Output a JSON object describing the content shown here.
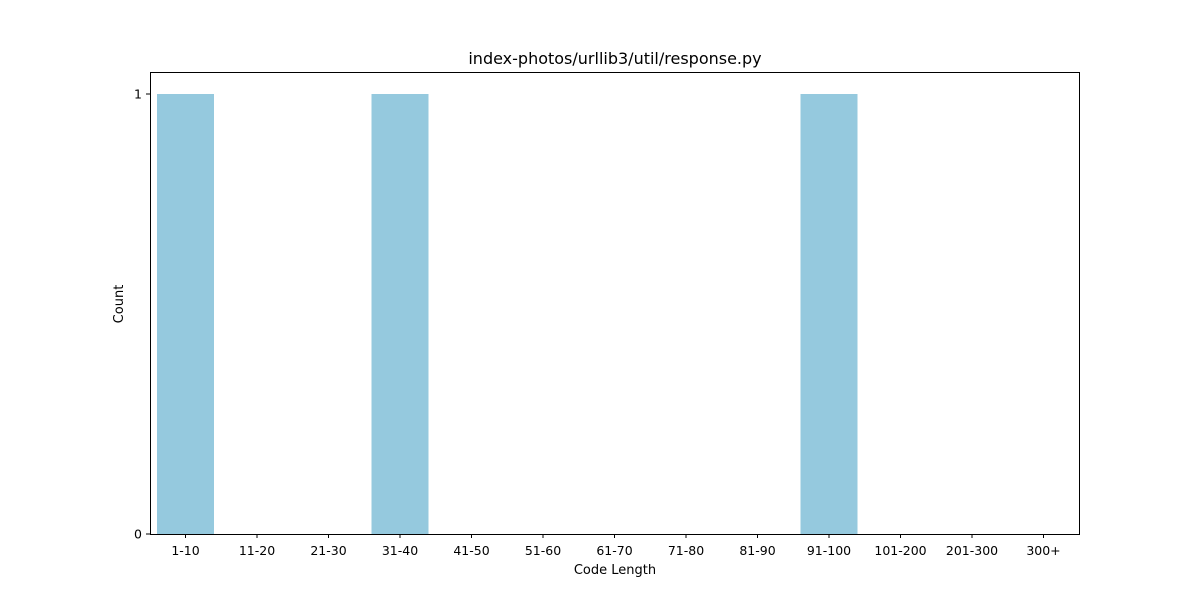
{
  "chart_data": {
    "type": "bar",
    "title": "index-photos/urllib3/util/response.py",
    "xlabel": "Code Length",
    "ylabel": "Count",
    "categories": [
      "1-10",
      "11-20",
      "21-30",
      "31-40",
      "41-50",
      "51-60",
      "61-70",
      "71-80",
      "81-90",
      "91-100",
      "101-200",
      "201-300",
      "300+"
    ],
    "values": [
      1,
      0,
      0,
      1,
      0,
      0,
      0,
      0,
      0,
      1,
      0,
      0,
      0
    ],
    "ylim": [
      0,
      1
    ],
    "yticks": [
      0,
      1
    ],
    "bar_color": "#95c9de",
    "grid": false,
    "legend": "none"
  }
}
